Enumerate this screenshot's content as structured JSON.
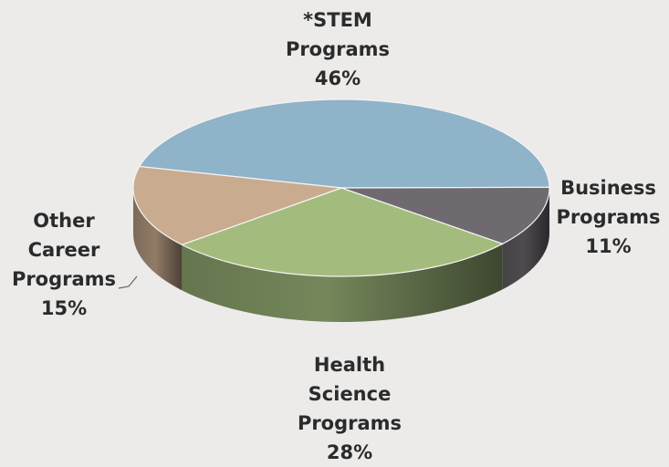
{
  "chart_data": {
    "type": "pie",
    "title": "",
    "slices": [
      {
        "label_lines": [
          "*STEM",
          "Programs"
        ],
        "value": 46,
        "value_label": "46%",
        "color": "#8fb3c8"
      },
      {
        "label_lines": [
          "Business",
          "Programs"
        ],
        "value": 11,
        "value_label": "11%",
        "color": "#6e6a6f"
      },
      {
        "label_lines": [
          "Health",
          "Science",
          "Programs"
        ],
        "value": 28,
        "value_label": "28%",
        "color": "#a3bc7e"
      },
      {
        "label_lines": [
          "Other",
          "Career",
          "Programs"
        ],
        "value": 15,
        "value_label": "15%",
        "color": "#c9ab8f"
      }
    ]
  }
}
